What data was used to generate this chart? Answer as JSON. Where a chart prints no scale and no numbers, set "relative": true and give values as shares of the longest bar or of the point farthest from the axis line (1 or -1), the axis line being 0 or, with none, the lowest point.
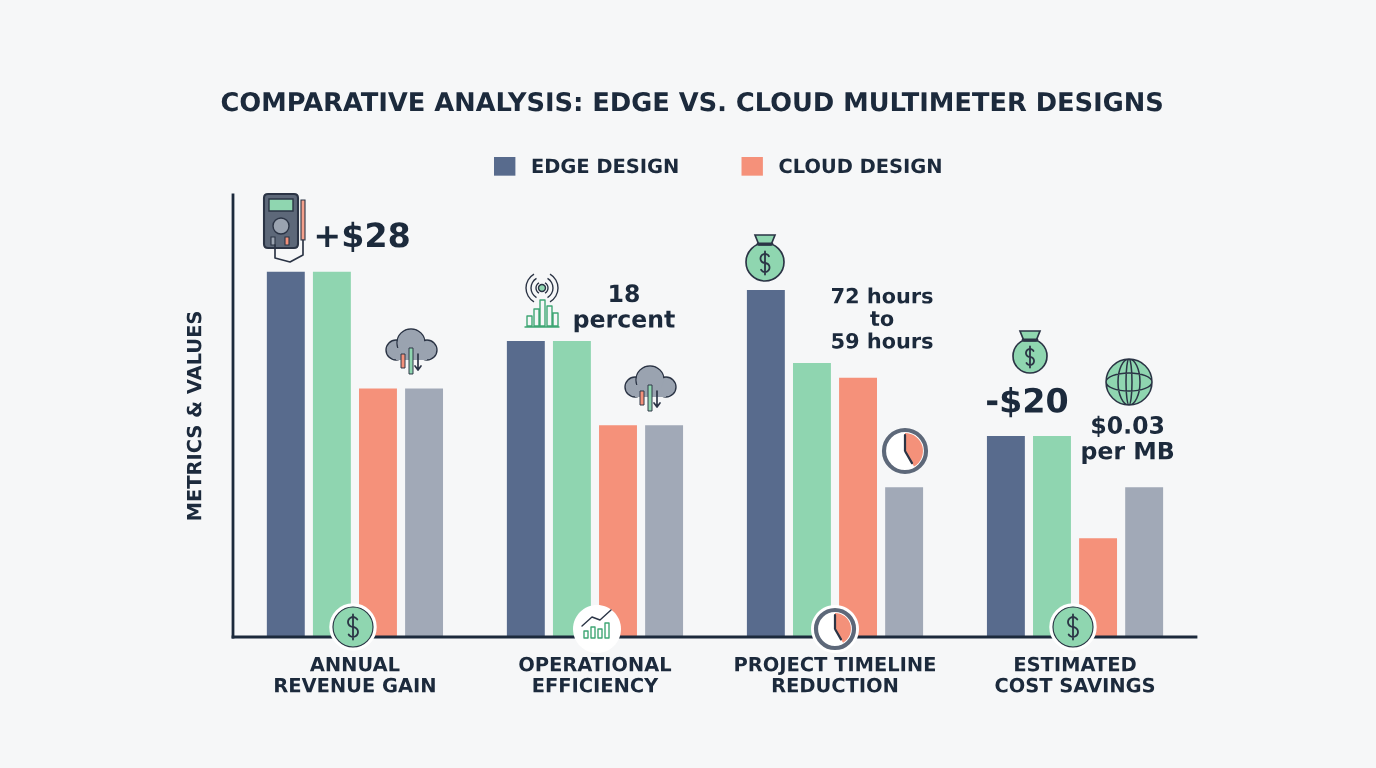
{
  "chart_data": {
    "type": "bar",
    "title": "COMPARATIVE ANALYSIS: EDGE VS. CLOUD MULTIMETER DESIGNS",
    "ylabel": "METRICS & VALUES",
    "categories": [
      "ANNUAL\nREVENUE GAIN",
      "OPERATIONAL\nEFFICIENCY",
      "PROJECT TIMELINE\nREDUCTION",
      "ESTIMATED\nCOST SAVINGS"
    ],
    "relative": true,
    "series": [
      {
        "name": "EDGE DESIGN",
        "color": "#586b8d",
        "values": [
          1,
          0.81,
          0.95,
          0.55
        ]
      },
      {
        "color": "#8fd5b0",
        "values": [
          1,
          0.81,
          0.75,
          0.55
        ]
      },
      {
        "name": "CLOUD DESIGN",
        "color": "#f5917a",
        "values": [
          0.68,
          0.58,
          0.71,
          0.27
        ]
      },
      {
        "color": "#a1a9b7",
        "values": [
          0.68,
          0.58,
          0.41,
          0.41
        ]
      }
    ],
    "annotations": [
      "+$28",
      "18\npercent",
      "72 hours\nto\n59 hours",
      "-$20",
      "$0.03\nper MB"
    ],
    "legend": "top",
    "tick_labels": "x"
  }
}
